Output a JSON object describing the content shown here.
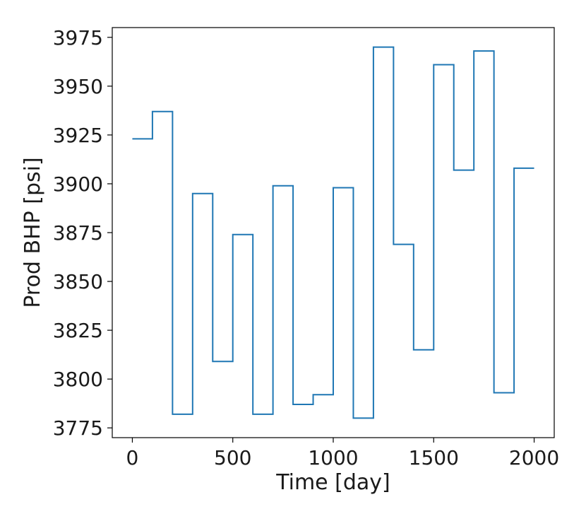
{
  "chart_data": {
    "type": "line",
    "step": "post",
    "xlabel": "Time [day]",
    "ylabel": "Prod BHP [psi]",
    "xlim": [
      -100,
      2100
    ],
    "ylim": [
      3770,
      3980
    ],
    "xticks": [
      0,
      500,
      1000,
      1500,
      2000
    ],
    "yticks": [
      3775,
      3800,
      3825,
      3850,
      3875,
      3900,
      3925,
      3950,
      3975
    ],
    "grid": false,
    "color": "#1f77b4",
    "series": [
      {
        "x": [
          0,
          100,
          200,
          300,
          400,
          500,
          600,
          700,
          800,
          900,
          1000,
          1100,
          1200,
          1300,
          1400,
          1500,
          1600,
          1700,
          1800,
          1900,
          2000
        ],
        "values": [
          3923,
          3937,
          3782,
          3895,
          3809,
          3874,
          3782,
          3899,
          3787,
          3792,
          3898,
          3780,
          3970,
          3869,
          3815,
          3961,
          3907,
          3968,
          3793,
          3908,
          3908
        ]
      }
    ]
  }
}
